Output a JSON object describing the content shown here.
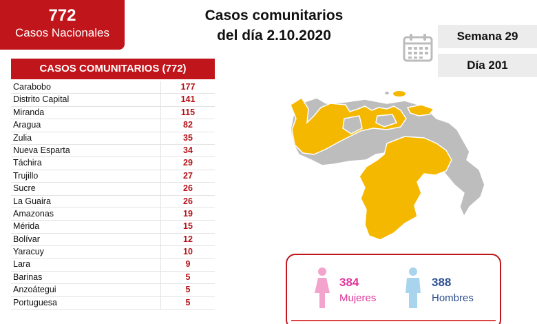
{
  "national": {
    "count": "772",
    "label": "Casos Nacionales"
  },
  "title": {
    "line1": "Casos comunitarios",
    "line2": "del día 2.10.2020"
  },
  "calendar": {
    "icon": "calendar-icon"
  },
  "week": "Semana 29",
  "day": "Día 201",
  "table": {
    "header": "CASOS COMUNITARIOS (772)",
    "rows": [
      {
        "state": "Carabobo",
        "cases": "177"
      },
      {
        "state": "Distrito Capital",
        "cases": "141"
      },
      {
        "state": "Miranda",
        "cases": "115"
      },
      {
        "state": "Aragua",
        "cases": "82"
      },
      {
        "state": "Zulia",
        "cases": "35"
      },
      {
        "state": "Nueva Esparta",
        "cases": "34"
      },
      {
        "state": "Táchira",
        "cases": "29"
      },
      {
        "state": "Trujillo",
        "cases": "27"
      },
      {
        "state": "Sucre",
        "cases": "26"
      },
      {
        "state": "La Guaira",
        "cases": "26"
      },
      {
        "state": "Amazonas",
        "cases": "19"
      },
      {
        "state": "Mérida",
        "cases": "15"
      },
      {
        "state": "Bolívar",
        "cases": "12"
      },
      {
        "state": "Yaracuy",
        "cases": "10"
      },
      {
        "state": "Lara",
        "cases": "9"
      },
      {
        "state": "Barinas",
        "cases": "5"
      },
      {
        "state": "Anzoátegui",
        "cases": "5"
      },
      {
        "state": "Portuguesa",
        "cases": "5"
      }
    ]
  },
  "gender": {
    "women": {
      "count": "384",
      "label": "Mujeres",
      "icon": "female-figure-icon"
    },
    "men": {
      "count": "388",
      "label": "Hombres",
      "icon": "male-figure-icon"
    }
  },
  "colors": {
    "brand_red": "#c0151b",
    "map_affected": "#f5b800",
    "map_unaffected": "#bdbdbd",
    "women": "#e0359a",
    "men": "#2f4f8f"
  }
}
